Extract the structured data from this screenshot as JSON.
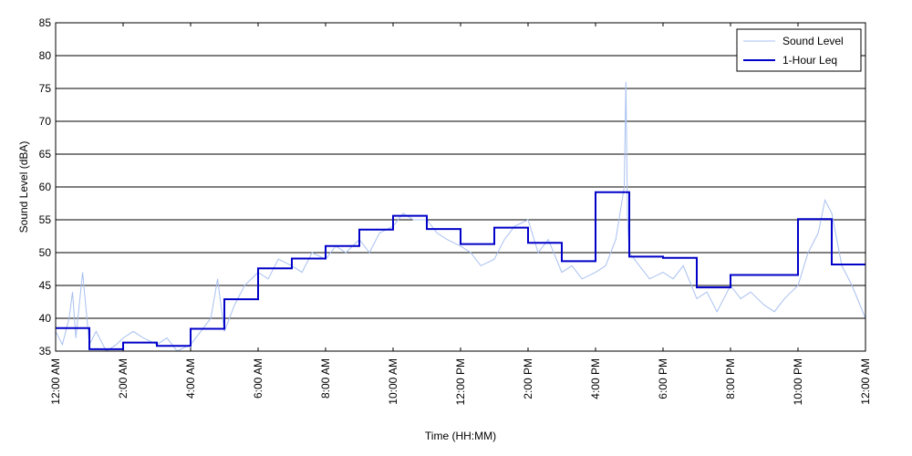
{
  "chart_data": {
    "type": "line",
    "xlabel": "Time (HH:MM)",
    "ylabel": "Sound Level (dBA)",
    "x_unit": "hours",
    "xlim": [
      0,
      24
    ],
    "ylim": [
      35,
      85
    ],
    "yticks": [
      35,
      40,
      45,
      50,
      55,
      60,
      65,
      70,
      75,
      80,
      85
    ],
    "xticks": [
      0,
      2,
      4,
      6,
      8,
      10,
      12,
      14,
      16,
      18,
      20,
      22,
      24
    ],
    "xtick_labels": [
      "12:00 AM",
      "2:00 AM",
      "4:00 AM",
      "6:00 AM",
      "8:00 AM",
      "10:00 AM",
      "12:00 PM",
      "2:00 PM",
      "4:00 PM",
      "6:00 PM",
      "8:00 PM",
      "10:00 PM",
      "12:00 AM"
    ],
    "grid": "horizontal",
    "legend_position": "top-right",
    "series": [
      {
        "name": "Sound Level",
        "color": "#a8c0f0",
        "style": "thin-line",
        "x": [
          0,
          0.2,
          0.4,
          0.5,
          0.6,
          0.8,
          1.0,
          1.2,
          1.5,
          1.8,
          2.0,
          2.3,
          2.6,
          3.0,
          3.3,
          3.6,
          4.0,
          4.3,
          4.6,
          4.8,
          5.0,
          5.3,
          5.6,
          6.0,
          6.3,
          6.6,
          7.0,
          7.3,
          7.6,
          8.0,
          8.3,
          8.6,
          9.0,
          9.3,
          9.6,
          10.0,
          10.3,
          10.6,
          11.0,
          11.3,
          11.6,
          12.0,
          12.3,
          12.6,
          13.0,
          13.3,
          13.6,
          14.0,
          14.3,
          14.6,
          15.0,
          15.3,
          15.6,
          16.0,
          16.3,
          16.6,
          16.85,
          16.9,
          16.95,
          17.0,
          17.3,
          17.6,
          18.0,
          18.3,
          18.6,
          19.0,
          19.3,
          19.6,
          20.0,
          20.3,
          20.6,
          21.0,
          21.3,
          21.6,
          22.0,
          22.3,
          22.6,
          22.8,
          23.0,
          23.3,
          23.6,
          24.0
        ],
        "values": [
          38,
          36,
          40,
          44,
          37,
          47,
          36,
          38,
          35,
          36,
          37,
          38,
          37,
          36,
          37,
          35,
          36,
          38,
          40,
          46,
          38,
          42,
          45,
          47,
          46,
          49,
          48,
          47,
          50,
          49,
          51,
          50,
          52,
          50,
          53,
          54,
          56,
          55,
          55,
          53,
          52,
          51,
          50,
          48,
          49,
          52,
          54,
          55,
          50,
          52,
          47,
          48,
          46,
          47,
          48,
          52,
          60,
          76,
          55,
          50,
          48,
          46,
          47,
          46,
          48,
          43,
          44,
          41,
          45,
          43,
          44,
          42,
          41,
          43,
          45,
          50,
          53,
          58,
          56,
          48,
          45,
          40
        ]
      },
      {
        "name": "1-Hour Leq",
        "color": "#0000c8",
        "style": "step",
        "hour_values": [
          38.5,
          35.3,
          36.3,
          35.8,
          38.4,
          42.9,
          47.6,
          49.1,
          51.0,
          53.5,
          55.6,
          53.6,
          51.3,
          53.8,
          51.5,
          48.7,
          59.2,
          49.4,
          49.2,
          44.7,
          46.6,
          46.6,
          55.1,
          48.2
        ]
      }
    ]
  }
}
